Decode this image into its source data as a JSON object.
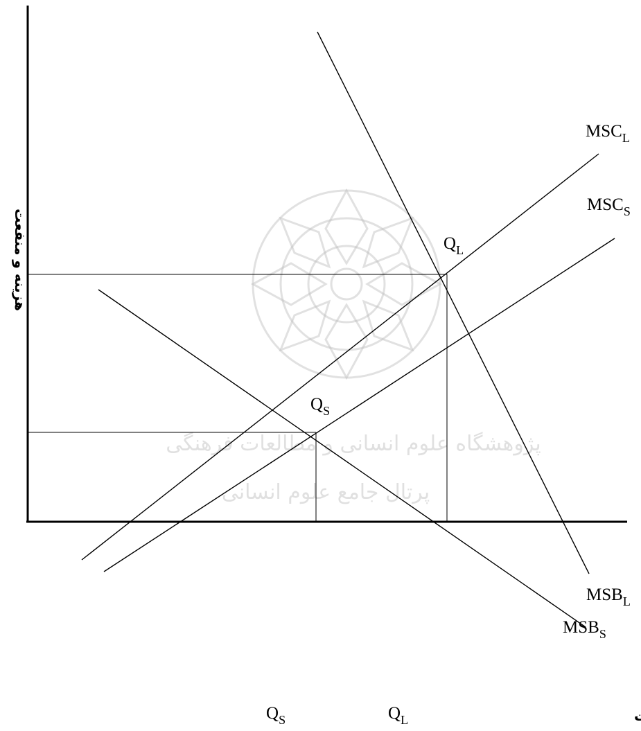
{
  "axes": {
    "y_label": "هزینه و منفعت",
    "x_label": "کیفیت و محیط زیست"
  },
  "curves": {
    "msc_l": {
      "main": "MSC",
      "sub": "L"
    },
    "msc_s": {
      "main": "MSC",
      "sub": "S"
    },
    "msb_l": {
      "main": "MSB",
      "sub": "L"
    },
    "msb_s": {
      "main": "MSB",
      "sub": "S"
    }
  },
  "points": {
    "q_l": {
      "main": "Q",
      "sub": "L"
    },
    "q_s": {
      "main": "Q",
      "sub": "S"
    }
  },
  "ticks": {
    "q_s": {
      "main": "Q",
      "sub": "S"
    },
    "q_l": {
      "main": "Q",
      "sub": "L"
    }
  },
  "watermark": {
    "line1": "پژوهشگاه علوم انسانی و مطالعات فرهنگی",
    "line2": "پرتال جامع علوم انسانی"
  },
  "colors": {
    "ink": "#000000",
    "watermark": "#c8c8c8"
  }
}
